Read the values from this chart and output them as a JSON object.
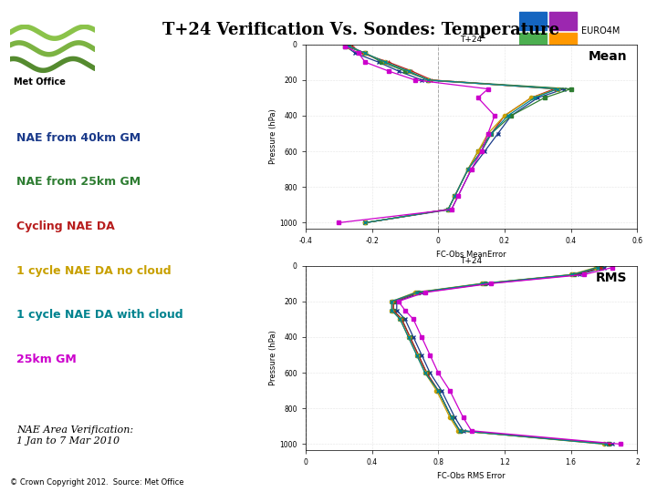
{
  "title": "T+24 Verification Vs. Sondes: Temperature",
  "background_color": "#ffffff",
  "legend_items": [
    {
      "label": "NAE from 40km GM",
      "color": "#1a3a8a"
    },
    {
      "label": "NAE from 25km GM",
      "color": "#2e7d32"
    },
    {
      "label": "Cycling NAE DA",
      "color": "#b71c1c"
    },
    {
      "label": "1 cycle NAE DA no cloud",
      "color": "#c8a000"
    },
    {
      "label": "1 cycle NAE DA with cloud",
      "color": "#00838f"
    },
    {
      "label": "25km GM",
      "color": "#cc00cc"
    }
  ],
  "annotation_italic": "NAE Area Verification:\n1 Jan to 7 Mar 2010",
  "copyright": "© Crown Copyright 2012.  Source: Met Office",
  "pressure_levels": [
    10,
    50,
    100,
    150,
    200,
    250,
    300,
    400,
    500,
    600,
    700,
    850,
    925,
    1000
  ],
  "mean_data": {
    "title": "T+24",
    "xlabel": "FC-Obs MeanError",
    "ylabel": "Pressure (hPa)",
    "xlim": [
      -0.4,
      0.6
    ],
    "xticks": [
      -0.4,
      -0.2,
      0.0,
      0.2,
      0.4,
      0.6
    ],
    "ylim": [
      1034,
      0
    ],
    "yticks": [
      0,
      200,
      400,
      600,
      800,
      1000
    ],
    "series": [
      {
        "color": "#1a3a8a",
        "marker": "x",
        "linestyle": "-",
        "values": [
          -0.28,
          -0.25,
          -0.18,
          -0.12,
          -0.05,
          0.38,
          0.3,
          0.22,
          0.18,
          0.14,
          0.1,
          0.06,
          0.04,
          -0.22
        ]
      },
      {
        "color": "#2e7d32",
        "marker": "s",
        "linestyle": "-",
        "values": [
          -0.28,
          -0.22,
          -0.17,
          -0.1,
          -0.03,
          0.4,
          0.32,
          0.22,
          0.16,
          0.12,
          0.09,
          0.05,
          0.03,
          -0.22
        ]
      },
      {
        "color": "#b71c1c",
        "marker": "+",
        "linestyle": "-",
        "values": [
          -0.26,
          -0.23,
          -0.15,
          -0.08,
          -0.02,
          0.35,
          0.28,
          0.2,
          0.16,
          0.13,
          0.09,
          0.05,
          0.03,
          -0.22
        ]
      },
      {
        "color": "#c8a000",
        "marker": "o",
        "linestyle": "-",
        "values": [
          -0.27,
          -0.22,
          -0.16,
          -0.09,
          -0.03,
          0.36,
          0.28,
          0.2,
          0.15,
          0.12,
          0.09,
          0.05,
          0.03,
          -0.22
        ]
      },
      {
        "color": "#00838f",
        "marker": "x",
        "linestyle": "-",
        "values": [
          -0.27,
          -0.22,
          -0.16,
          -0.09,
          -0.03,
          0.36,
          0.29,
          0.21,
          0.16,
          0.13,
          0.09,
          0.05,
          0.03,
          -0.22
        ]
      },
      {
        "color": "#cc00cc",
        "marker": "s",
        "linestyle": "-",
        "values": [
          -0.28,
          -0.24,
          -0.22,
          -0.15,
          -0.07,
          0.15,
          0.12,
          0.17,
          0.15,
          0.13,
          0.1,
          0.06,
          0.04,
          -0.3
        ]
      }
    ]
  },
  "rms_data": {
    "title": "T+24",
    "xlabel": "FC-Obs RMS Error",
    "ylabel": "Pressure (hPa)",
    "xlim": [
      0.0,
      2.0
    ],
    "xticks": [
      0.0,
      0.4,
      0.8,
      1.2,
      1.6,
      2.0
    ],
    "ylim": [
      1034,
      0
    ],
    "yticks": [
      0,
      200,
      400,
      600,
      800,
      1000
    ],
    "series": [
      {
        "color": "#1a3a8a",
        "marker": "x",
        "linestyle": "-",
        "values": [
          1.8,
          1.65,
          1.1,
          0.7,
          0.55,
          0.55,
          0.6,
          0.65,
          0.7,
          0.75,
          0.82,
          0.9,
          0.95,
          1.85
        ]
      },
      {
        "color": "#2e7d32",
        "marker": "s",
        "linestyle": "-",
        "values": [
          1.78,
          1.62,
          1.08,
          0.68,
          0.53,
          0.53,
          0.58,
          0.63,
          0.68,
          0.73,
          0.8,
          0.88,
          0.93,
          1.83
        ]
      },
      {
        "color": "#b71c1c",
        "marker": "+",
        "linestyle": "-",
        "values": [
          1.78,
          1.62,
          1.08,
          0.68,
          0.53,
          0.53,
          0.58,
          0.63,
          0.68,
          0.73,
          0.8,
          0.88,
          0.93,
          1.83
        ]
      },
      {
        "color": "#c8a000",
        "marker": "o",
        "linestyle": "-",
        "values": [
          1.75,
          1.6,
          1.06,
          0.66,
          0.52,
          0.52,
          0.57,
          0.62,
          0.67,
          0.72,
          0.79,
          0.87,
          0.92,
          1.8
        ]
      },
      {
        "color": "#00838f",
        "marker": "x",
        "linestyle": "-",
        "values": [
          1.76,
          1.61,
          1.07,
          0.67,
          0.52,
          0.52,
          0.57,
          0.62,
          0.67,
          0.72,
          0.8,
          0.88,
          0.93,
          1.81
        ]
      },
      {
        "color": "#cc00cc",
        "marker": "s",
        "linestyle": "-",
        "values": [
          1.85,
          1.68,
          1.12,
          0.72,
          0.56,
          0.6,
          0.65,
          0.7,
          0.75,
          0.8,
          0.87,
          0.95,
          1.0,
          1.9
        ]
      }
    ]
  },
  "euro4m_colors": [
    "#1565c0",
    "#9c27b0",
    "#4caf50",
    "#ff9800"
  ],
  "logo_wave_colors": [
    "#8bc34a",
    "#7cb342",
    "#558b2f"
  ]
}
